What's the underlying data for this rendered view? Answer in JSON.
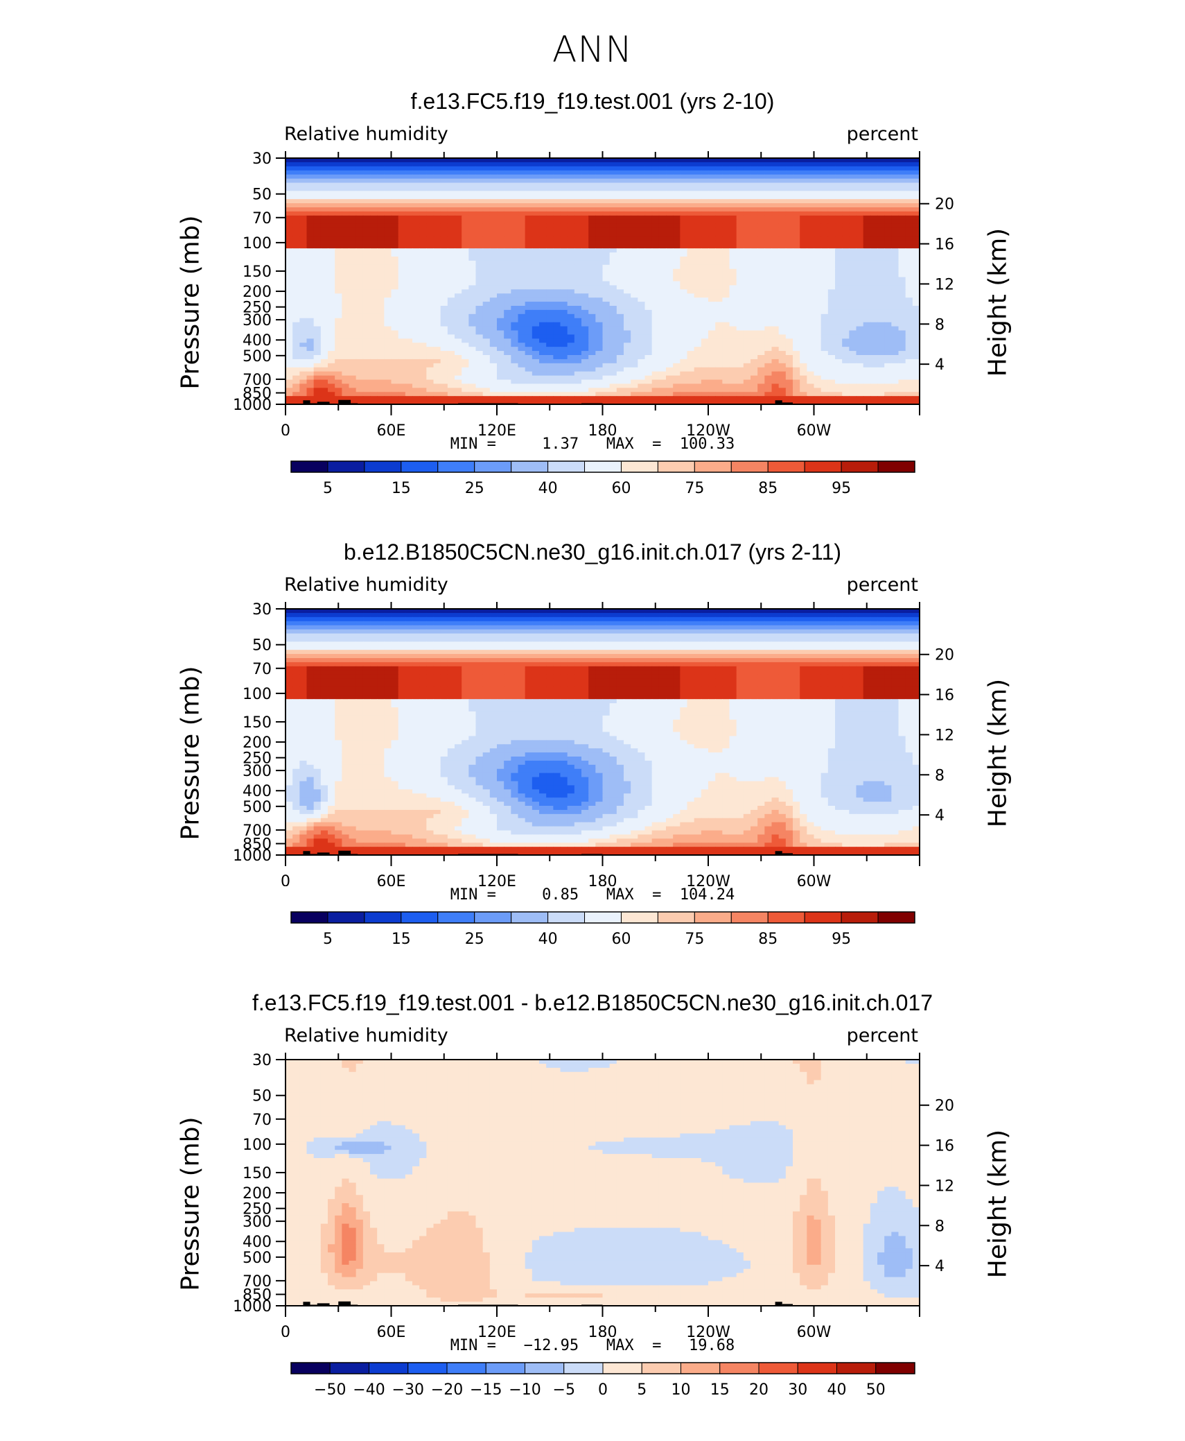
{
  "page": {
    "title": "ANN"
  },
  "chart_data": [
    {
      "type": "heatmap",
      "title": "f.e13.FC5.f19_f19.test.001 (yrs 2-10)",
      "variable": "Relative humidity",
      "units": "percent",
      "ylabel": "Pressure (mb)",
      "ylabel_right": "Height (km)",
      "x_ticks": [
        "0",
        "60E",
        "120E",
        "180",
        "120W",
        "60W"
      ],
      "x_range_deg": [
        0,
        360
      ],
      "y_ticks": [
        "30",
        "50",
        "70",
        "100",
        "150",
        "200",
        "250",
        "300",
        "400",
        "500",
        "700",
        "850",
        "1000"
      ],
      "y_range_mb": [
        30,
        1000
      ],
      "height_ticks": [
        "20",
        "16",
        "12",
        "8",
        "4"
      ],
      "stats": "MIN =     1.37   MAX  =  100.33",
      "min": 1.37,
      "max": 100.33,
      "colorbar_labels": [
        "5",
        "15",
        "25",
        "40",
        "60",
        "75",
        "85",
        "95"
      ],
      "colorbar_levels": [
        5,
        10,
        15,
        20,
        25,
        30,
        40,
        50,
        60,
        65,
        70,
        75,
        80,
        85,
        90,
        95
      ]
    },
    {
      "type": "heatmap",
      "title": "b.e12.B1850C5CN.ne30_g16.init.ch.017 (yrs 2-11)",
      "variable": "Relative humidity",
      "units": "percent",
      "ylabel": "Pressure (mb)",
      "ylabel_right": "Height (km)",
      "x_ticks": [
        "0",
        "60E",
        "120E",
        "180",
        "120W",
        "60W"
      ],
      "x_range_deg": [
        0,
        360
      ],
      "y_ticks": [
        "30",
        "50",
        "70",
        "100",
        "150",
        "200",
        "250",
        "300",
        "400",
        "500",
        "700",
        "850",
        "1000"
      ],
      "y_range_mb": [
        30,
        1000
      ],
      "height_ticks": [
        "20",
        "16",
        "12",
        "8",
        "4"
      ],
      "stats": "MIN =     0.85   MAX  =  104.24",
      "min": 0.85,
      "max": 104.24,
      "colorbar_labels": [
        "5",
        "15",
        "25",
        "40",
        "60",
        "75",
        "85",
        "95"
      ],
      "colorbar_levels": [
        5,
        10,
        15,
        20,
        25,
        30,
        40,
        50,
        60,
        65,
        70,
        75,
        80,
        85,
        90,
        95
      ]
    },
    {
      "type": "heatmap",
      "title": "f.e13.FC5.f19_f19.test.001 - b.e12.B1850C5CN.ne30_g16.init.ch.017",
      "variable": "Relative humidity",
      "units": "percent",
      "ylabel": "Pressure (mb)",
      "ylabel_right": "Height (km)",
      "x_ticks": [
        "0",
        "60E",
        "120E",
        "180",
        "120W",
        "60W"
      ],
      "x_range_deg": [
        0,
        360
      ],
      "y_ticks": [
        "30",
        "50",
        "70",
        "100",
        "150",
        "200",
        "250",
        "300",
        "400",
        "500",
        "700",
        "850",
        "1000"
      ],
      "y_range_mb": [
        30,
        1000
      ],
      "height_ticks": [
        "20",
        "16",
        "12",
        "8",
        "4"
      ],
      "stats": "MIN =   −12.95   MAX  =   19.68",
      "min": -12.95,
      "max": 19.68,
      "colorbar_labels": [
        "−50",
        "−40",
        "−30",
        "−20",
        "−15",
        "−10",
        "−5",
        "0",
        "5",
        "10",
        "15",
        "20",
        "30",
        "40",
        "50"
      ],
      "colorbar_levels": [
        -50,
        -40,
        -30,
        -20,
        -15,
        -10,
        -5,
        0,
        5,
        10,
        15,
        20,
        30,
        40,
        50
      ]
    }
  ],
  "colors": {
    "abs_scale": [
      "#08005f",
      "#0a1ea0",
      "#0c3cd0",
      "#1d5ef0",
      "#3f7ef8",
      "#6c9cf8",
      "#9ebdf6",
      "#cbdcf8",
      "#eaf2fc",
      "#fde7d4",
      "#fcccb0",
      "#fbac8a",
      "#f58563",
      "#ee5a38",
      "#dc3418",
      "#b81d0a",
      "#800000"
    ],
    "diff_scale": [
      "#08005f",
      "#0a1ea0",
      "#0c3cd0",
      "#1d5ef0",
      "#3f7ef8",
      "#6c9cf8",
      "#9ebdf6",
      "#cbdcf8",
      "#fde7d4",
      "#fcccb0",
      "#fbac8a",
      "#f58563",
      "#ee5a38",
      "#dc3418",
      "#b81d0a",
      "#800000"
    ]
  }
}
